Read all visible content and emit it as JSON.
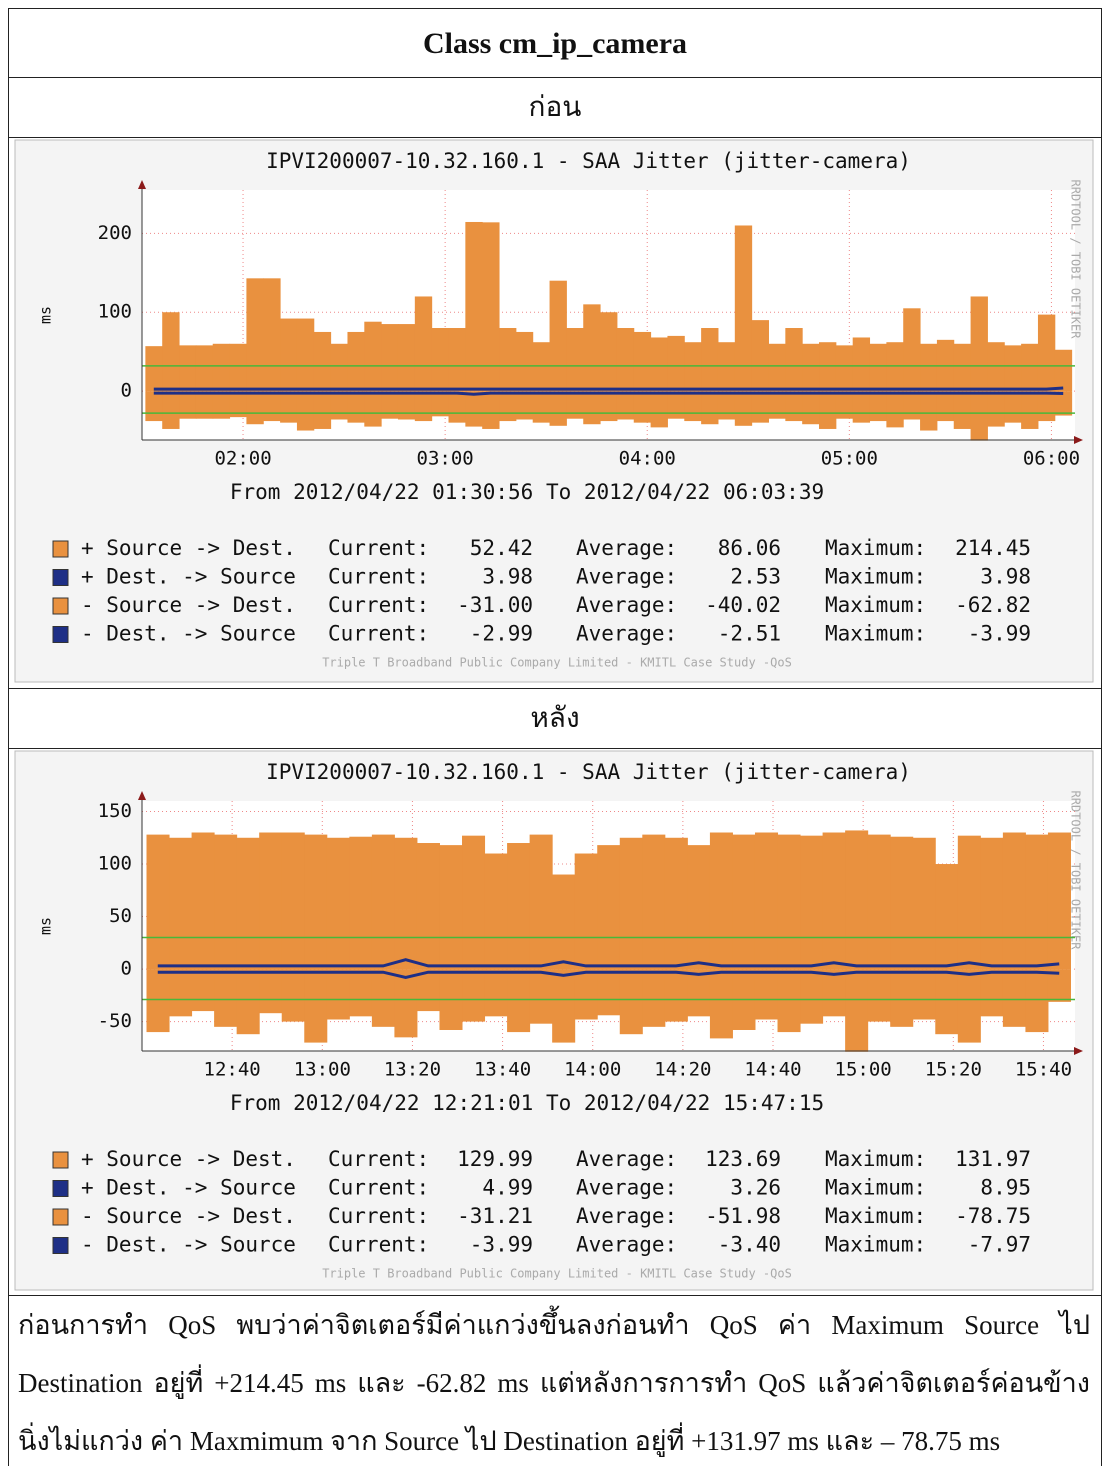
{
  "document": {
    "title": "Class cm_ip_camera",
    "before_label": "ก่อน",
    "after_label": "หลัง",
    "paragraph": [
      "ก่อนการทำ QoS พบว่าค่าจิตเตอร์มีค่าแกว่งขึ้นลงก่อนทำ QoS ค่า Maximum Source ไป",
      "Destination อยู่ที่ +214.45 ms และ -62.82 ms แต่หลังการการทำ QoS แล้วค่าจิตเตอร์ค่อนข้าง",
      "นิ่งไม่แกว่ง ค่า Maxmimum จาก Source ไป Destination อยู่ที่ +131.97 ms และ – 78.75 ms"
    ]
  },
  "chart_data": [
    {
      "type": "area",
      "title": "IPVI200007-10.32.160.1 - SAA Jitter (jitter-camera)",
      "y_label": "ms",
      "subtitle": "From 2012/04/22 01:30:56 To 2012/04/22 06:03:39",
      "footer": "Triple T Broadband Public Company Limited - KMITL Case Study -QoS",
      "side_label": "RRDTOOL / TOBI OETIKER",
      "xlim": [
        "01:30",
        "06:07"
      ],
      "xticks": [
        "02:00",
        "03:00",
        "04:00",
        "05:00",
        "06:00"
      ],
      "ylim": [
        -62,
        255
      ],
      "yticks": [
        0,
        100,
        200
      ],
      "grid": true,
      "hrules": [
        32,
        -28
      ],
      "hrule_color": "#49b83a",
      "step_minutes": 5,
      "legend_stat_labels": [
        "Current:",
        "Average:",
        "Maximum:"
      ],
      "x": [
        "01:31",
        "01:36",
        "01:41",
        "01:46",
        "01:51",
        "01:56",
        "02:01",
        "02:06",
        "02:11",
        "02:16",
        "02:21",
        "02:26",
        "02:31",
        "02:36",
        "02:41",
        "02:46",
        "02:51",
        "02:56",
        "03:01",
        "03:06",
        "03:11",
        "03:16",
        "03:21",
        "03:26",
        "03:31",
        "03:36",
        "03:41",
        "03:46",
        "03:51",
        "03:56",
        "04:01",
        "04:06",
        "04:11",
        "04:16",
        "04:21",
        "04:26",
        "04:31",
        "04:36",
        "04:41",
        "04:46",
        "04:51",
        "04:56",
        "05:01",
        "05:06",
        "05:11",
        "05:16",
        "05:21",
        "05:26",
        "05:31",
        "05:36",
        "05:41",
        "05:46",
        "05:51",
        "05:56",
        "06:01"
      ],
      "series": [
        {
          "name": "+ Source -> Dest.",
          "color": "#e9913f",
          "style": "area",
          "current": "52.42",
          "average": "86.06",
          "maximum": "214.45",
          "values": [
            57,
            100,
            58,
            58,
            60,
            60,
            143,
            143,
            92,
            92,
            75,
            60,
            75,
            88,
            85,
            85,
            120,
            80,
            80,
            214.45,
            214,
            80,
            75,
            62,
            140,
            80,
            110,
            100,
            80,
            75,
            68,
            70,
            62,
            80,
            62,
            210,
            90,
            60,
            80,
            60,
            62,
            58,
            68,
            60,
            62,
            105,
            60,
            65,
            60,
            120,
            62,
            58,
            60,
            97,
            52.42
          ]
        },
        {
          "name": "- Source -> Dest.",
          "color": "#e9913f",
          "style": "area",
          "current": "-31.00",
          "average": "-40.02",
          "maximum": "-62.82",
          "values": [
            -38,
            -48,
            -35,
            -35,
            -35,
            -33,
            -42,
            -38,
            -40,
            -50,
            -48,
            -36,
            -40,
            -45,
            -35,
            -36,
            -38,
            -32,
            -40,
            -45,
            -48,
            -38,
            -36,
            -40,
            -44,
            -35,
            -42,
            -38,
            -36,
            -40,
            -46,
            -35,
            -38,
            -42,
            -36,
            -44,
            -40,
            -35,
            -38,
            -42,
            -48,
            -35,
            -40,
            -38,
            -46,
            -36,
            -50,
            -38,
            -48,
            -62.82,
            -45,
            -40,
            -48,
            -38,
            -31
          ]
        },
        {
          "name": "+ Dest. -> Source",
          "color": "#1e2f86",
          "style": "line",
          "current": "3.98",
          "average": "2.53",
          "maximum": "3.98",
          "values": [
            2.5,
            2.5,
            2.5,
            2.5,
            2.5,
            2.5,
            2.5,
            2.5,
            2.5,
            2.5,
            2.5,
            2.5,
            2.5,
            2.5,
            2.5,
            2.5,
            2.5,
            2.5,
            2.5,
            2.5,
            2.5,
            2.5,
            2.5,
            2.5,
            2.5,
            2.5,
            2.5,
            2.5,
            2.5,
            2.5,
            2.5,
            2.5,
            2.5,
            2.5,
            2.5,
            2.5,
            2.5,
            2.5,
            2.5,
            2.5,
            2.5,
            2.5,
            2.5,
            2.5,
            2.5,
            2.5,
            2.5,
            2.5,
            2.5,
            2.5,
            2.5,
            2.5,
            2.5,
            2.5,
            3.98
          ]
        },
        {
          "name": "- Dest. -> Source",
          "color": "#1e2f86",
          "style": "line",
          "current": "-2.99",
          "average": "-2.51",
          "maximum": "-3.99",
          "values": [
            -2.5,
            -2.5,
            -2.5,
            -2.5,
            -2.5,
            -2.5,
            -2.5,
            -2.5,
            -2.5,
            -2.5,
            -2.5,
            -2.5,
            -2.5,
            -2.5,
            -2.5,
            -2.5,
            -2.5,
            -2.5,
            -2.5,
            -3.99,
            -2.5,
            -2.5,
            -2.5,
            -2.5,
            -2.5,
            -2.5,
            -2.5,
            -2.5,
            -2.5,
            -2.5,
            -2.5,
            -2.5,
            -2.5,
            -2.5,
            -2.5,
            -2.5,
            -2.5,
            -2.5,
            -2.5,
            -2.5,
            -2.5,
            -2.5,
            -2.5,
            -2.5,
            -2.5,
            -2.5,
            -2.5,
            -2.5,
            -2.5,
            -2.5,
            -2.5,
            -2.5,
            -2.5,
            -2.5,
            -2.99
          ]
        }
      ]
    },
    {
      "type": "area",
      "title": "IPVI200007-10.32.160.1 - SAA Jitter (jitter-camera)",
      "y_label": "ms",
      "subtitle": "From 2012/04/22 12:21:01 To 2012/04/22 15:47:15",
      "footer": "Triple T Broadband Public Company Limited - KMITL Case Study -QoS",
      "side_label": "RRDTOOL / TOBI OETIKER",
      "xlim": [
        "12:20",
        "15:47"
      ],
      "xticks": [
        "12:40",
        "13:00",
        "13:20",
        "13:40",
        "14:00",
        "14:20",
        "14:40",
        "15:00",
        "15:20",
        "15:40"
      ],
      "ylim": [
        -78,
        160
      ],
      "yticks": [
        -50,
        0,
        50,
        100,
        150
      ],
      "grid": true,
      "hrules": [
        30,
        -29
      ],
      "hrule_color": "#49b83a",
      "step_minutes": 5,
      "legend_stat_labels": [
        "Current:",
        "Average:",
        "Maximum:"
      ],
      "x": [
        "12:21",
        "12:26",
        "12:31",
        "12:36",
        "12:41",
        "12:46",
        "12:51",
        "12:56",
        "13:01",
        "13:06",
        "13:11",
        "13:16",
        "13:21",
        "13:26",
        "13:31",
        "13:36",
        "13:41",
        "13:46",
        "13:51",
        "13:56",
        "14:01",
        "14:06",
        "14:11",
        "14:16",
        "14:21",
        "14:26",
        "14:31",
        "14:36",
        "14:41",
        "14:46",
        "14:51",
        "14:56",
        "15:01",
        "15:06",
        "15:11",
        "15:16",
        "15:21",
        "15:26",
        "15:31",
        "15:36",
        "15:41"
      ],
      "series": [
        {
          "name": "+ Source -> Dest.",
          "color": "#e9913f",
          "style": "area",
          "current": "129.99",
          "average": "123.69",
          "maximum": "131.97",
          "values": [
            128,
            125,
            130,
            128,
            125,
            130,
            130,
            128,
            125,
            126,
            128,
            125,
            120,
            118,
            127,
            110,
            120,
            128,
            90,
            110,
            118,
            125,
            128,
            125,
            118,
            130,
            128,
            130,
            128,
            127,
            130,
            131.97,
            128,
            126,
            125,
            100,
            127,
            125,
            130,
            128,
            129.99
          ]
        },
        {
          "name": "- Source -> Dest.",
          "color": "#e9913f",
          "style": "area",
          "current": "-31.21",
          "average": "-51.98",
          "maximum": "-78.75",
          "values": [
            -60,
            -45,
            -40,
            -55,
            -62,
            -42,
            -50,
            -70,
            -48,
            -45,
            -55,
            -65,
            -40,
            -58,
            -50,
            -45,
            -60,
            -52,
            -70,
            -48,
            -44,
            -62,
            -55,
            -50,
            -45,
            -66,
            -58,
            -48,
            -60,
            -52,
            -45,
            -78.75,
            -50,
            -55,
            -48,
            -62,
            -70,
            -45,
            -55,
            -60,
            -31.21
          ]
        },
        {
          "name": "+ Dest. -> Source",
          "color": "#1e2f86",
          "style": "line",
          "current": "4.99",
          "average": "3.26",
          "maximum": "8.95",
          "values": [
            3,
            3,
            3,
            3,
            3,
            3,
            3,
            3,
            3,
            3,
            3,
            8.95,
            3,
            3,
            3,
            3,
            3,
            3,
            7,
            3,
            3,
            3,
            3,
            3,
            6,
            3,
            3,
            3,
            3,
            3,
            6,
            3,
            3,
            3,
            3,
            3,
            6,
            3,
            3,
            3,
            4.99
          ]
        },
        {
          "name": "- Dest. -> Source",
          "color": "#1e2f86",
          "style": "line",
          "current": "-3.99",
          "average": "-3.40",
          "maximum": "-7.97",
          "values": [
            -3,
            -3,
            -3,
            -3,
            -3,
            -3,
            -3,
            -3,
            -3,
            -3,
            -3,
            -7.97,
            -3,
            -3,
            -3,
            -3,
            -3,
            -3,
            -6,
            -3,
            -3,
            -3,
            -3,
            -3,
            -5,
            -3,
            -3,
            -3,
            -3,
            -3,
            -5,
            -3,
            -3,
            -3,
            -3,
            -3,
            -5,
            -3,
            -3,
            -3,
            -3.99
          ]
        }
      ]
    }
  ]
}
